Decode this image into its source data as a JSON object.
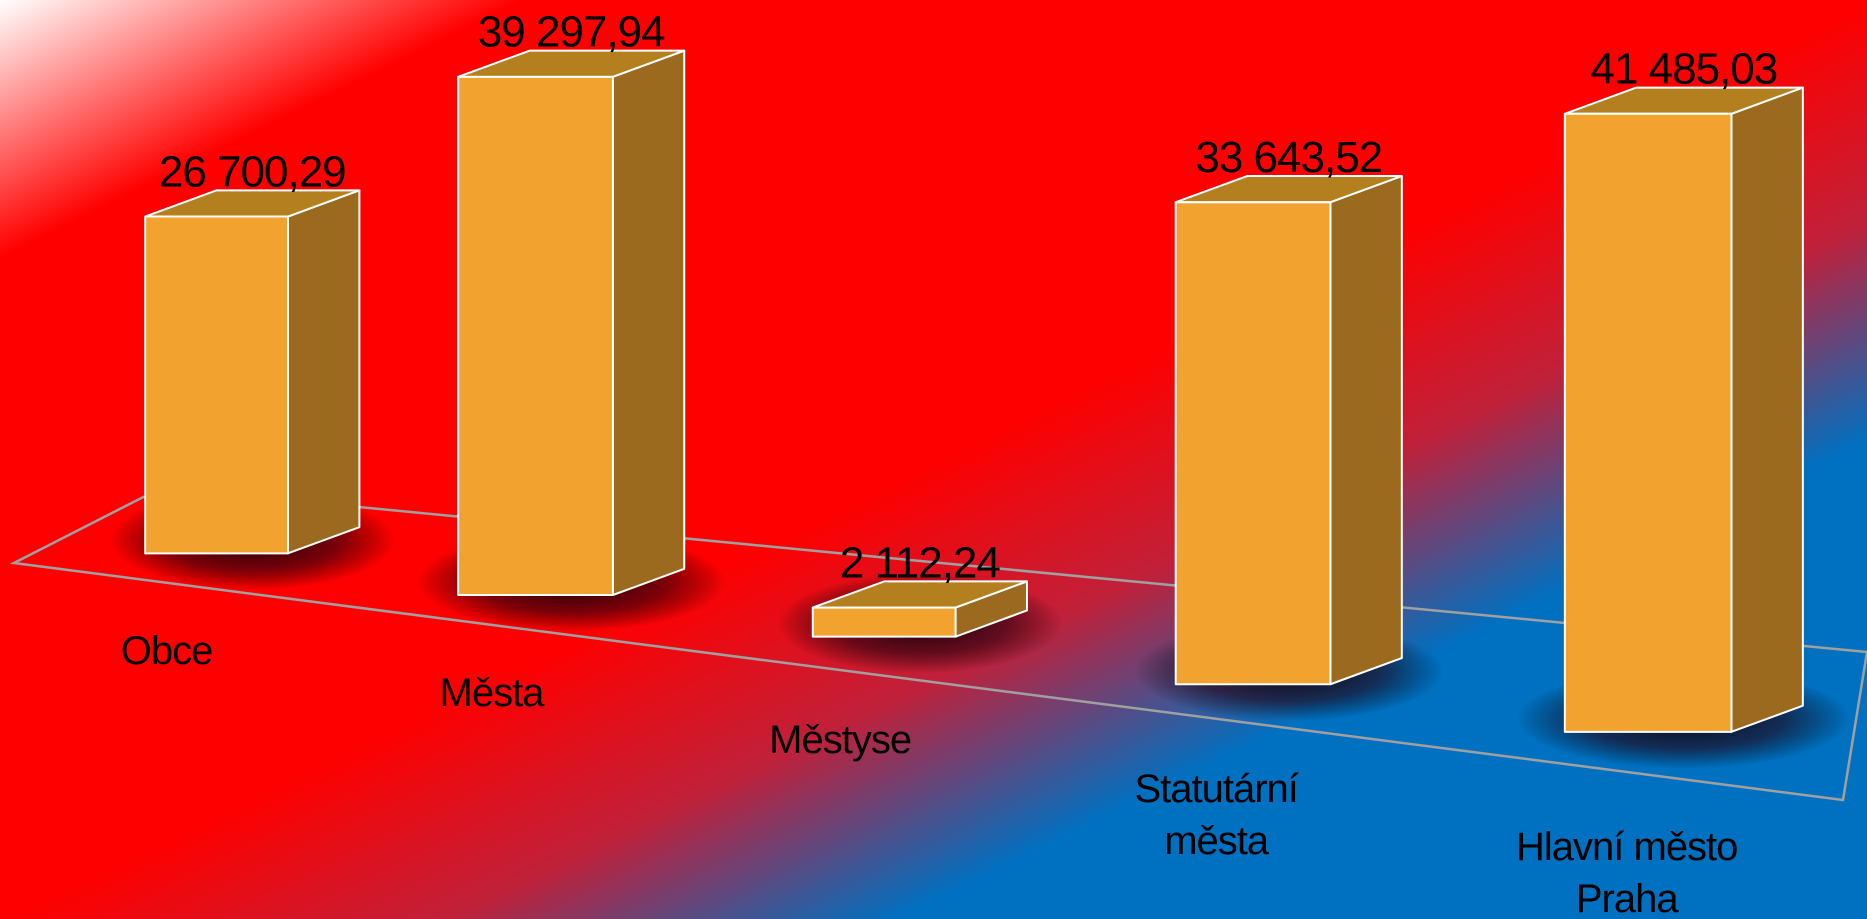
{
  "chart_data": {
    "type": "bar",
    "categories": [
      "Obce",
      "Města",
      "Městyse",
      "Statutární města",
      "Hlavní město Praha"
    ],
    "values": [
      26700.29,
      39297.94,
      2112.24,
      33643.52,
      41485.03
    ],
    "value_labels": [
      "26 700,29",
      "39 297,94",
      "2 112,24",
      "33 643,52",
      "41 485,03"
    ],
    "color": "#f2a22f"
  }
}
